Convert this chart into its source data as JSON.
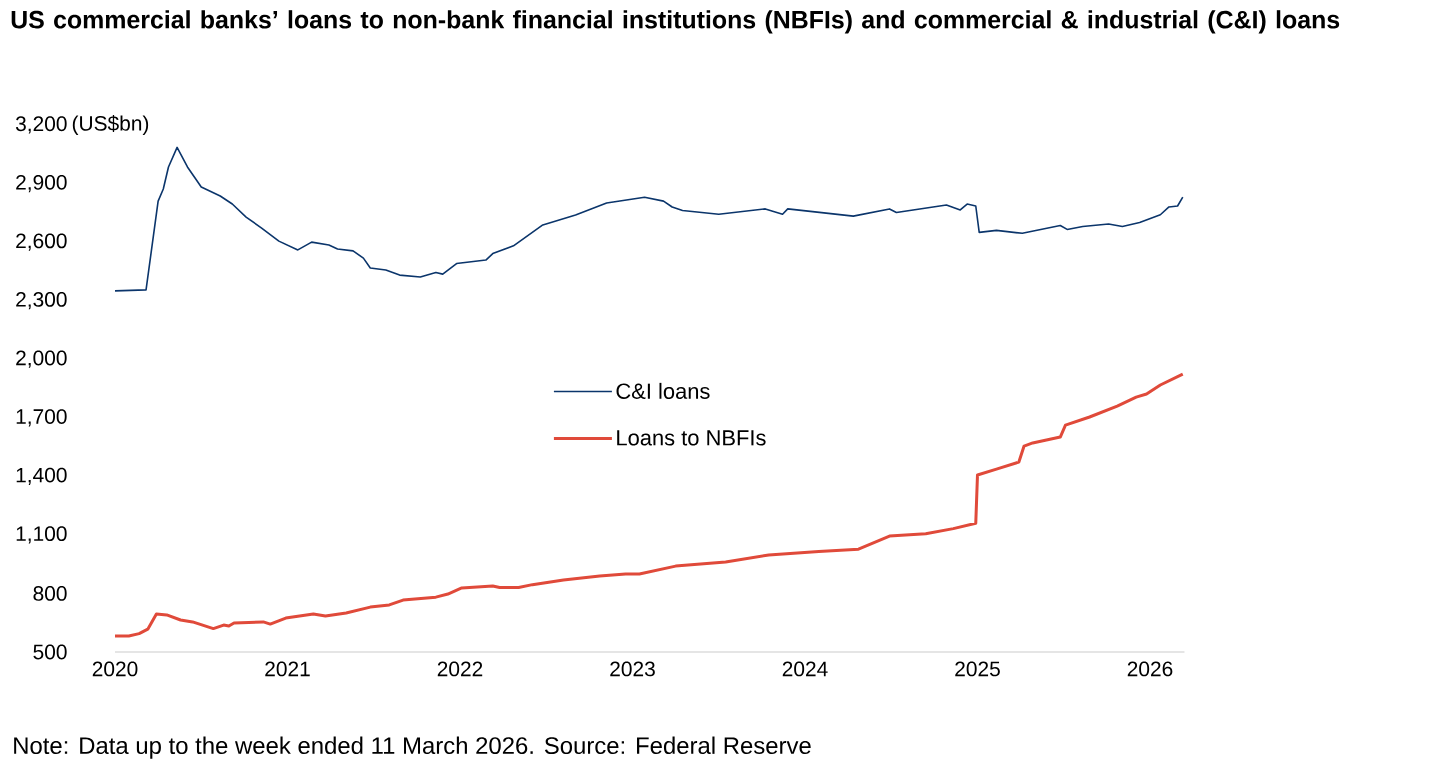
{
  "chart_data": {
    "type": "line",
    "title": "US commercial banks’ loans to non-bank financial institutions (NBFIs) and commercial & industrial (C&I) loans",
    "ylabel": "(US$bn)",
    "annotations": [
      "Note: Data up to the week ended 11 March 2026. Source: Federal Reserve"
    ],
    "xlim": [
      2020,
      2026.2
    ],
    "xticks": [
      2020,
      2021,
      2022,
      2023,
      2024,
      2025,
      2026
    ],
    "ylim": [
      500,
      3200
    ],
    "yticks": [
      {
        "value": 500,
        "label": "500"
      },
      {
        "value": 800,
        "label": "800"
      },
      {
        "value": 1100,
        "label": "1,100"
      },
      {
        "value": 1400,
        "label": "1,400"
      },
      {
        "value": 1700,
        "label": "1,700"
      },
      {
        "value": 2000,
        "label": "2,000"
      },
      {
        "value": 2300,
        "label": "2,300"
      },
      {
        "value": 2600,
        "label": "2,600"
      },
      {
        "value": 2900,
        "label": "2,900"
      },
      {
        "value": 3200,
        "label": "3,200"
      }
    ],
    "grid": false,
    "legend": "center",
    "series": [
      {
        "name": "C&I loans",
        "color": "#0b356b",
        "x": [
          2020.0,
          2020.18,
          2020.25,
          2020.28,
          2020.31,
          2020.36,
          2020.42,
          2020.5,
          2020.61,
          2020.68,
          2020.76,
          2020.85,
          2020.95,
          2021.06,
          2021.14,
          2021.24,
          2021.29,
          2021.38,
          2021.44,
          2021.48,
          2021.57,
          2021.65,
          2021.77,
          2021.86,
          2021.9,
          2021.98,
          2022.15,
          2022.19,
          2022.31,
          2022.48,
          2022.67,
          2022.85,
          2023.07,
          2023.18,
          2023.23,
          2023.29,
          2023.5,
          2023.77,
          2023.87,
          2023.9,
          2024.28,
          2024.49,
          2024.53,
          2024.82,
          2024.9,
          2024.94,
          2024.99,
          2025.01,
          2025.11,
          2025.26,
          2025.48,
          2025.52,
          2025.61,
          2025.76,
          2025.84,
          2025.94,
          2026.06,
          2026.11,
          2026.16,
          2026.19
        ],
        "values": [
          2350,
          2355,
          2810,
          2872,
          2985,
          3085,
          2985,
          2882,
          2836,
          2795,
          2728,
          2672,
          2605,
          2560,
          2600,
          2585,
          2565,
          2555,
          2518,
          2467,
          2457,
          2431,
          2421,
          2444,
          2436,
          2490,
          2508,
          2541,
          2581,
          2688,
          2739,
          2800,
          2830,
          2810,
          2780,
          2762,
          2743,
          2770,
          2743,
          2770,
          2733,
          2770,
          2752,
          2790,
          2765,
          2795,
          2785,
          2650,
          2660,
          2645,
          2685,
          2665,
          2680,
          2693,
          2680,
          2700,
          2740,
          2780,
          2785,
          2830
        ]
      },
      {
        "name": "Loans to NBFIs",
        "color": "#e04a3a",
        "x": [
          2020.0,
          2020.08,
          2020.14,
          2020.19,
          2020.24,
          2020.3,
          2020.38,
          2020.45,
          2020.57,
          2020.63,
          2020.66,
          2020.69,
          2020.86,
          2020.9,
          2020.99,
          2021.15,
          2021.22,
          2021.34,
          2021.48,
          2021.59,
          2021.67,
          2021.86,
          2021.93,
          2022.01,
          2022.19,
          2022.23,
          2022.34,
          2022.42,
          2022.6,
          2022.81,
          2022.96,
          2023.04,
          2023.25,
          2023.54,
          2023.79,
          2024.08,
          2024.31,
          2024.49,
          2024.7,
          2024.86,
          2024.99,
          2025.0,
          2025.11,
          2025.24,
          2025.27,
          2025.32,
          2025.48,
          2025.51,
          2025.65,
          2025.81,
          2025.92,
          2025.98,
          2026.06,
          2026.19
        ],
        "values": [
          582,
          582,
          594,
          617,
          695,
          690,
          664,
          654,
          620,
          638,
          633,
          649,
          654,
          643,
          674,
          695,
          684,
          700,
          730,
          741,
          766,
          781,
          797,
          828,
          838,
          830,
          830,
          845,
          869,
          889,
          900,
          900,
          940,
          961,
          997,
          1015,
          1027,
          1094,
          1106,
          1132,
          1160,
          1407,
          1437,
          1473,
          1555,
          1571,
          1601,
          1662,
          1704,
          1760,
          1806,
          1822,
          1868,
          1924
        ]
      }
    ]
  }
}
